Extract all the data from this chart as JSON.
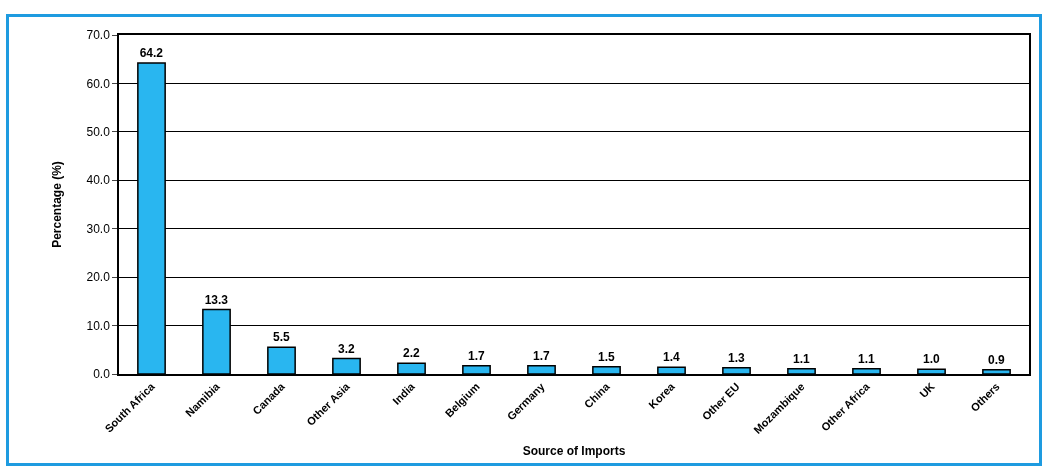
{
  "chart_data": {
    "type": "bar",
    "xlabel": "Source of Imports",
    "ylabel": "Percentage (%)",
    "categories": [
      "South Africa",
      "Namibia",
      "Canada",
      "Other Asia",
      "India",
      "Belgium",
      "Germany",
      "China",
      "Korea",
      "Other EU",
      "Mozambique",
      "Other Africa",
      "UK",
      "Others"
    ],
    "values": [
      64.2,
      13.3,
      5.5,
      3.2,
      2.2,
      1.7,
      1.7,
      1.5,
      1.4,
      1.3,
      1.1,
      1.1,
      1.0,
      0.9
    ],
    "value_labels": [
      "64.2",
      "13.3",
      "5.5",
      "3.2",
      "2.2",
      "1.7",
      "1.7",
      "1.5",
      "1.4",
      "1.3",
      "1.1",
      "1.1",
      "1.0",
      "0.9"
    ],
    "color": "#29b6f0",
    "grid": "y",
    "ylim": [
      0,
      70
    ],
    "yticks": [
      {
        "value": 0,
        "label": "0.0"
      },
      {
        "value": 10,
        "label": "10.0"
      },
      {
        "value": 20,
        "label": "20.0"
      },
      {
        "value": 30,
        "label": "30.0"
      },
      {
        "value": 40,
        "label": "40.0"
      },
      {
        "value": 50,
        "label": "50.0"
      },
      {
        "value": 60,
        "label": "60.0"
      },
      {
        "value": 70,
        "label": "70.0"
      }
    ]
  }
}
